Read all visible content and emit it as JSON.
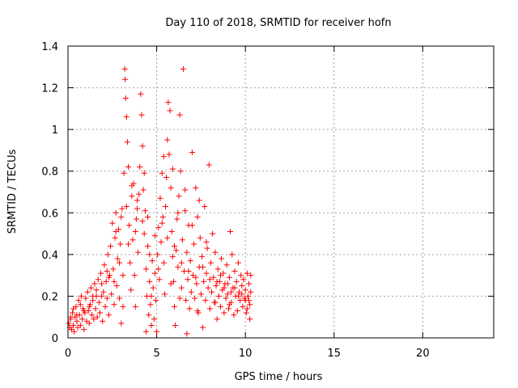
{
  "chart_data": {
    "type": "scatter",
    "title": "Day 110 of 2018, SRMTID for receiver hofn",
    "xlabel": "GPS time / hours",
    "ylabel": "SRMTID / TECUs",
    "xlim": [
      0,
      24
    ],
    "ylim": [
      0,
      1.4
    ],
    "xticks": [
      0,
      5,
      10,
      15,
      20
    ],
    "yticks": [
      0,
      0.2,
      0.4,
      0.6,
      0.8,
      1,
      1.2,
      1.4
    ],
    "xtick_labels": [
      "0",
      "5",
      "10",
      "15",
      "20"
    ],
    "ytick_labels": [
      "0",
      "0.2",
      "0.4",
      "0.6",
      "0.8",
      "1",
      "1.2",
      "1.4"
    ],
    "grid": true,
    "marker": "plus",
    "series_color": "#ff0000",
    "points": [
      [
        0.05,
        0.07
      ],
      [
        0.1,
        0.05
      ],
      [
        0.15,
        0.09
      ],
      [
        0.2,
        0.04
      ],
      [
        0.25,
        0.12
      ],
      [
        0.3,
        0.06
      ],
      [
        0.35,
        0.03
      ],
      [
        0.4,
        0.1
      ],
      [
        0.45,
        0.15
      ],
      [
        0.5,
        0.08
      ],
      [
        0.55,
        0.05
      ],
      [
        0.6,
        0.18
      ],
      [
        0.65,
        0.11
      ],
      [
        0.7,
        0.06
      ],
      [
        0.75,
        0.2
      ],
      [
        0.8,
        0.09
      ],
      [
        0.85,
        0.14
      ],
      [
        0.9,
        0.04
      ],
      [
        0.95,
        0.12
      ],
      [
        1.0,
        0.19
      ],
      [
        1.05,
        0.08
      ],
      [
        1.1,
        0.22
      ],
      [
        1.15,
        0.13
      ],
      [
        1.2,
        0.07
      ],
      [
        1.25,
        0.16
      ],
      [
        1.3,
        0.24
      ],
      [
        1.35,
        0.11
      ],
      [
        1.4,
        0.18
      ],
      [
        1.45,
        0.09
      ],
      [
        1.5,
        0.26
      ],
      [
        1.55,
        0.14
      ],
      [
        1.6,
        0.2
      ],
      [
        1.65,
        0.1
      ],
      [
        1.7,
        0.28
      ],
      [
        1.75,
        0.17
      ],
      [
        1.8,
        0.12
      ],
      [
        1.85,
        0.31
      ],
      [
        1.9,
        0.2
      ],
      [
        1.95,
        0.08
      ],
      [
        2.0,
        0.22
      ],
      [
        2.05,
        0.35
      ],
      [
        2.1,
        0.15
      ],
      [
        2.15,
        0.27
      ],
      [
        2.2,
        0.19
      ],
      [
        2.25,
        0.4
      ],
      [
        2.3,
        0.11
      ],
      [
        2.35,
        0.3
      ],
      [
        2.4,
        0.44
      ],
      [
        2.45,
        0.21
      ],
      [
        2.5,
        0.55
      ],
      [
        2.55,
        0.33
      ],
      [
        2.6,
        0.16
      ],
      [
        2.65,
        0.48
      ],
      [
        2.7,
        0.6
      ],
      [
        2.75,
        0.25
      ],
      [
        2.8,
        0.38
      ],
      [
        2.85,
        0.52
      ],
      [
        2.9,
        0.19
      ],
      [
        2.95,
        0.45
      ],
      [
        3.0,
        0.07
      ],
      [
        3.05,
        0.62
      ],
      [
        3.1,
        0.3
      ],
      [
        3.15,
        0.79
      ],
      [
        3.2,
        1.29
      ],
      [
        3.22,
        1.24
      ],
      [
        3.25,
        1.15
      ],
      [
        3.3,
        1.06
      ],
      [
        3.35,
        0.94
      ],
      [
        3.4,
        0.82
      ],
      [
        3.45,
        0.54
      ],
      [
        3.5,
        0.36
      ],
      [
        3.55,
        0.23
      ],
      [
        3.6,
        0.68
      ],
      [
        3.65,
        0.47
      ],
      [
        3.7,
        0.74
      ],
      [
        3.75,
        0.3
      ],
      [
        3.8,
        0.15
      ],
      [
        3.85,
        0.57
      ],
      [
        3.9,
        0.62
      ],
      [
        3.95,
        0.41
      ],
      [
        4.0,
        0.69
      ],
      [
        4.05,
        0.82
      ],
      [
        4.1,
        1.17
      ],
      [
        4.15,
        1.07
      ],
      [
        4.2,
        0.92
      ],
      [
        4.25,
        0.71
      ],
      [
        4.3,
        0.5
      ],
      [
        4.35,
        0.61
      ],
      [
        4.4,
        0.33
      ],
      [
        4.45,
        0.2
      ],
      [
        4.5,
        0.44
      ],
      [
        4.55,
        0.11
      ],
      [
        4.6,
        0.27
      ],
      [
        4.65,
        0.16
      ],
      [
        4.7,
        0.06
      ],
      [
        4.75,
        0.37
      ],
      [
        4.8,
        0.24
      ],
      [
        4.85,
        0.09
      ],
      [
        4.9,
        0.31
      ],
      [
        4.95,
        0.18
      ],
      [
        5.0,
        0.03
      ],
      [
        5.05,
        0.4
      ],
      [
        5.1,
        0.53
      ],
      [
        5.15,
        0.28
      ],
      [
        5.2,
        0.67
      ],
      [
        5.25,
        0.46
      ],
      [
        5.3,
        0.79
      ],
      [
        5.35,
        0.58
      ],
      [
        5.4,
        0.36
      ],
      [
        5.45,
        0.21
      ],
      [
        5.5,
        0.63
      ],
      [
        5.55,
        0.77
      ],
      [
        5.6,
        0.95
      ],
      [
        5.65,
        1.13
      ],
      [
        5.7,
        0.88
      ],
      [
        5.75,
        1.09
      ],
      [
        5.8,
        0.72
      ],
      [
        5.85,
        0.51
      ],
      [
        5.9,
        0.39
      ],
      [
        5.95,
        0.27
      ],
      [
        6.0,
        0.15
      ],
      [
        6.05,
        0.06
      ],
      [
        6.1,
        0.42
      ],
      [
        6.15,
        0.57
      ],
      [
        6.2,
        0.34
      ],
      [
        6.25,
        0.68
      ],
      [
        6.3,
        1.07
      ],
      [
        6.35,
        0.8
      ],
      [
        6.4,
        0.24
      ],
      [
        6.45,
        0.47
      ],
      [
        6.5,
        1.29
      ],
      [
        6.55,
        0.32
      ],
      [
        6.6,
        0.61
      ],
      [
        6.65,
        0.18
      ],
      [
        6.7,
        0.41
      ],
      [
        6.75,
        0.28
      ],
      [
        6.8,
        0.54
      ],
      [
        6.85,
        0.14
      ],
      [
        6.9,
        0.37
      ],
      [
        6.95,
        0.22
      ],
      [
        7.0,
        0.89
      ],
      [
        7.05,
        0.3
      ],
      [
        7.1,
        0.45
      ],
      [
        7.15,
        0.19
      ],
      [
        7.2,
        0.72
      ],
      [
        7.25,
        0.26
      ],
      [
        7.3,
        0.58
      ],
      [
        7.35,
        0.12
      ],
      [
        7.4,
        0.34
      ],
      [
        7.45,
        0.48
      ],
      [
        7.5,
        0.21
      ],
      [
        7.55,
        0.39
      ],
      [
        7.6,
        0.05
      ],
      [
        7.65,
        0.27
      ],
      [
        7.7,
        0.63
      ],
      [
        7.75,
        0.18
      ],
      [
        7.8,
        0.31
      ],
      [
        7.85,
        0.43
      ],
      [
        7.9,
        0.24
      ],
      [
        7.95,
        0.83
      ],
      [
        8.0,
        0.14
      ],
      [
        8.05,
        0.36
      ],
      [
        8.1,
        0.22
      ],
      [
        8.15,
        0.5
      ],
      [
        8.2,
        0.29
      ],
      [
        8.25,
        0.17
      ],
      [
        8.3,
        0.41
      ],
      [
        8.35,
        0.25
      ],
      [
        8.4,
        0.09
      ],
      [
        8.45,
        0.33
      ],
      [
        8.5,
        0.2
      ],
      [
        8.55,
        0.27
      ],
      [
        8.6,
        0.15
      ],
      [
        8.65,
        0.38
      ],
      [
        8.7,
        0.23
      ],
      [
        8.75,
        0.31
      ],
      [
        8.8,
        0.12
      ],
      [
        8.85,
        0.26
      ],
      [
        8.9,
        0.19
      ],
      [
        8.95,
        0.35
      ],
      [
        9.0,
        0.21
      ],
      [
        9.05,
        0.14
      ],
      [
        9.1,
        0.29
      ],
      [
        9.15,
        0.51
      ],
      [
        9.2,
        0.17
      ],
      [
        9.25,
        0.4
      ],
      [
        9.3,
        0.24
      ],
      [
        9.35,
        0.11
      ],
      [
        9.4,
        0.32
      ],
      [
        9.45,
        0.2
      ],
      [
        9.5,
        0.27
      ],
      [
        9.55,
        0.13
      ],
      [
        9.6,
        0.36
      ],
      [
        9.65,
        0.22
      ],
      [
        9.7,
        0.18
      ],
      [
        9.75,
        0.3
      ],
      [
        9.8,
        0.25
      ],
      [
        9.85,
        0.15
      ],
      [
        9.9,
        0.28
      ],
      [
        9.95,
        0.19
      ],
      [
        10.0,
        0.23
      ],
      [
        10.05,
        0.12
      ],
      [
        10.1,
        0.31
      ],
      [
        10.15,
        0.2
      ],
      [
        10.2,
        0.26
      ],
      [
        10.25,
        0.16
      ],
      [
        10.3,
        0.22
      ],
      [
        10.3,
        0.3
      ],
      [
        10.25,
        0.09
      ],
      [
        10.2,
        0.18
      ],
      [
        0.3,
        0.14
      ],
      [
        0.7,
        0.16
      ],
      [
        1.2,
        0.15
      ],
      [
        1.6,
        0.23
      ],
      [
        2.2,
        0.32
      ],
      [
        2.6,
        0.27
      ],
      [
        2.9,
        0.36
      ],
      [
        3.4,
        0.45
      ],
      [
        3.8,
        0.51
      ],
      [
        4.2,
        0.56
      ],
      [
        4.6,
        0.4
      ],
      [
        5.1,
        0.33
      ],
      [
        5.6,
        0.48
      ],
      [
        6.0,
        0.44
      ],
      [
        6.4,
        0.36
      ],
      [
        6.8,
        0.32
      ],
      [
        7.2,
        0.29
      ],
      [
        7.6,
        0.34
      ],
      [
        8.0,
        0.28
      ],
      [
        8.4,
        0.27
      ],
      [
        8.8,
        0.24
      ],
      [
        9.2,
        0.22
      ],
      [
        9.6,
        0.2
      ],
      [
        10.0,
        0.18
      ],
      [
        3.6,
        0.73
      ],
      [
        4.3,
        0.79
      ],
      [
        5.4,
        0.87
      ],
      [
        5.9,
        0.81
      ],
      [
        6.6,
        0.71
      ],
      [
        7.4,
        0.66
      ],
      [
        2.7,
        0.51
      ],
      [
        3.0,
        0.58
      ],
      [
        3.3,
        0.63
      ],
      [
        3.9,
        0.66
      ],
      [
        4.5,
        0.58
      ],
      [
        4.9,
        0.49
      ],
      [
        5.3,
        0.55
      ],
      [
        6.2,
        0.6
      ],
      [
        7.0,
        0.54
      ],
      [
        7.8,
        0.46
      ],
      [
        1.4,
        0.2
      ],
      [
        1.9,
        0.26
      ],
      [
        2.3,
        0.29
      ],
      [
        0.9,
        0.13
      ],
      [
        0.5,
        0.11
      ],
      [
        0.15,
        0.1
      ],
      [
        8.6,
        0.3
      ],
      [
        9.0,
        0.26
      ],
      [
        9.4,
        0.24
      ],
      [
        9.8,
        0.21
      ],
      [
        3.1,
        0.15
      ],
      [
        4.7,
        0.2
      ],
      [
        5.8,
        0.26
      ],
      [
        6.3,
        0.19
      ],
      [
        7.3,
        0.13
      ],
      [
        8.3,
        0.17
      ],
      [
        9.1,
        0.16
      ],
      [
        10.1,
        0.14
      ],
      [
        4.4,
        0.03
      ],
      [
        6.7,
        0.02
      ]
    ]
  }
}
